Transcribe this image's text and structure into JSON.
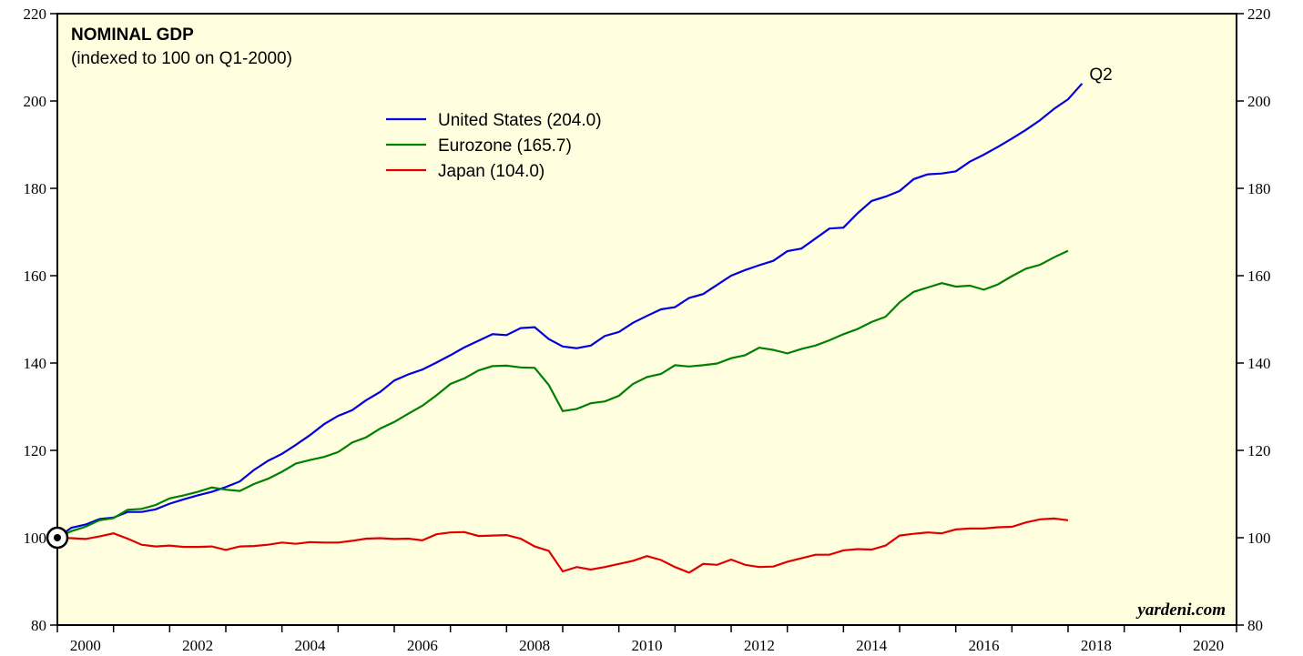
{
  "chart_data": {
    "type": "line",
    "title": "NOMINAL GDP",
    "subtitle": "(indexed to 100 on Q1-2000)",
    "annotation": "Q2",
    "source": "yardeni.com",
    "x": [
      2000,
      2000.25,
      2000.5,
      2000.75,
      2001,
      2001.25,
      2001.5,
      2001.75,
      2002,
      2002.25,
      2002.5,
      2002.75,
      2003,
      2003.25,
      2003.5,
      2003.75,
      2004,
      2004.25,
      2004.5,
      2004.75,
      2005,
      2005.25,
      2005.5,
      2005.75,
      2006,
      2006.25,
      2006.5,
      2006.75,
      2007,
      2007.25,
      2007.5,
      2007.75,
      2008,
      2008.25,
      2008.5,
      2008.75,
      2009,
      2009.25,
      2009.5,
      2009.75,
      2010,
      2010.25,
      2010.5,
      2010.75,
      2011,
      2011.25,
      2011.5,
      2011.75,
      2012,
      2012.25,
      2012.5,
      2012.75,
      2013,
      2013.25,
      2013.5,
      2013.75,
      2014,
      2014.25,
      2014.5,
      2014.75,
      2015,
      2015.25,
      2015.5,
      2015.75,
      2016,
      2016.25,
      2016.5,
      2016.75,
      2017,
      2017.25,
      2017.5,
      2017.75,
      2018,
      2018.25
    ],
    "series": [
      {
        "name": "United States (204.0)",
        "color": "#0000e0",
        "values": [
          100,
          102.3,
          103,
          104.3,
          104.6,
          105.9,
          105.9,
          106.5,
          107.8,
          108.8,
          109.7,
          110.5,
          111.6,
          112.9,
          115.5,
          117.6,
          119.2,
          121.3,
          123.5,
          126,
          127.9,
          129.2,
          131.5,
          133.4,
          136,
          137.4,
          138.5,
          140.1,
          141.8,
          143.6,
          145.1,
          146.6,
          146.4,
          148,
          148.2,
          145.5,
          143.8,
          143.4,
          144,
          146.2,
          147.1,
          149.2,
          150.8,
          152.3,
          152.8,
          154.9,
          155.8,
          157.9,
          160,
          161.3,
          162.4,
          163.4,
          165.6,
          166.2,
          168.5,
          170.8,
          171,
          174.3,
          177.1,
          178.1,
          179.4,
          182.1,
          183.2,
          183.4,
          183.9,
          186.1,
          187.7,
          189.5,
          191.4,
          193.4,
          195.6,
          198.2,
          200.4,
          204
        ]
      },
      {
        "name": "Eurozone (165.7)",
        "color": "#008000",
        "values": [
          100,
          101.5,
          102.5,
          104,
          104.5,
          106.4,
          106.6,
          107.5,
          109,
          109.7,
          110.5,
          111.5,
          111,
          110.7,
          112.3,
          113.5,
          115.1,
          117,
          117.8,
          118.5,
          119.6,
          121.8,
          123,
          125,
          126.5,
          128.4,
          130.2,
          132.6,
          135.2,
          136.5,
          138.3,
          139.3,
          139.4,
          139,
          138.9,
          135,
          129,
          129.5,
          130.8,
          131.2,
          132.5,
          135.2,
          136.8,
          137.5,
          139.5,
          139.2,
          139.5,
          139.9,
          141.1,
          141.8,
          143.5,
          143,
          142.2,
          143.2,
          144,
          145.2,
          146.6,
          147.8,
          149.4,
          150.6,
          153.9,
          156.3,
          157.3,
          158.3,
          157.5,
          157.7,
          156.8,
          158,
          159.9,
          161.6,
          162.5,
          164.2,
          165.7,
          null
        ]
      },
      {
        "name": "Japan (104.0)",
        "color": "#e00000",
        "values": [
          100,
          99.9,
          99.7,
          100.3,
          101,
          99.8,
          98.4,
          98,
          98.2,
          97.9,
          97.9,
          98,
          97.2,
          98,
          98.1,
          98.4,
          98.9,
          98.6,
          99,
          98.9,
          98.9,
          99.3,
          99.8,
          99.9,
          99.7,
          99.8,
          99.4,
          100.8,
          101.2,
          101.3,
          100.4,
          100.5,
          100.6,
          99.8,
          98,
          97,
          92.3,
          93.3,
          92.7,
          93.3,
          94,
          94.7,
          95.8,
          94.9,
          93.3,
          92,
          94,
          93.8,
          95,
          93.8,
          93.3,
          93.4,
          94.5,
          95.3,
          96.1,
          96.1,
          97.1,
          97.4,
          97.3,
          98.2,
          100.5,
          100.9,
          101.2,
          101,
          101.9,
          102.1,
          102.1,
          102.4,
          102.5,
          103.5,
          104.2,
          104.4,
          104,
          null
        ]
      }
    ],
    "xlim": [
      2000,
      2021
    ],
    "xticks": [
      2000,
      2001,
      2002,
      2003,
      2004,
      2005,
      2006,
      2007,
      2008,
      2009,
      2010,
      2011,
      2012,
      2013,
      2014,
      2015,
      2016,
      2017,
      2018,
      2019,
      2020,
      2021
    ],
    "ylim": [
      80,
      220
    ],
    "yticks": [
      80,
      100,
      120,
      140,
      160,
      180,
      200,
      220
    ],
    "y2lim": [
      80,
      220
    ],
    "y2ticks": [
      80,
      100,
      120,
      140,
      160,
      180,
      200,
      220
    ]
  }
}
